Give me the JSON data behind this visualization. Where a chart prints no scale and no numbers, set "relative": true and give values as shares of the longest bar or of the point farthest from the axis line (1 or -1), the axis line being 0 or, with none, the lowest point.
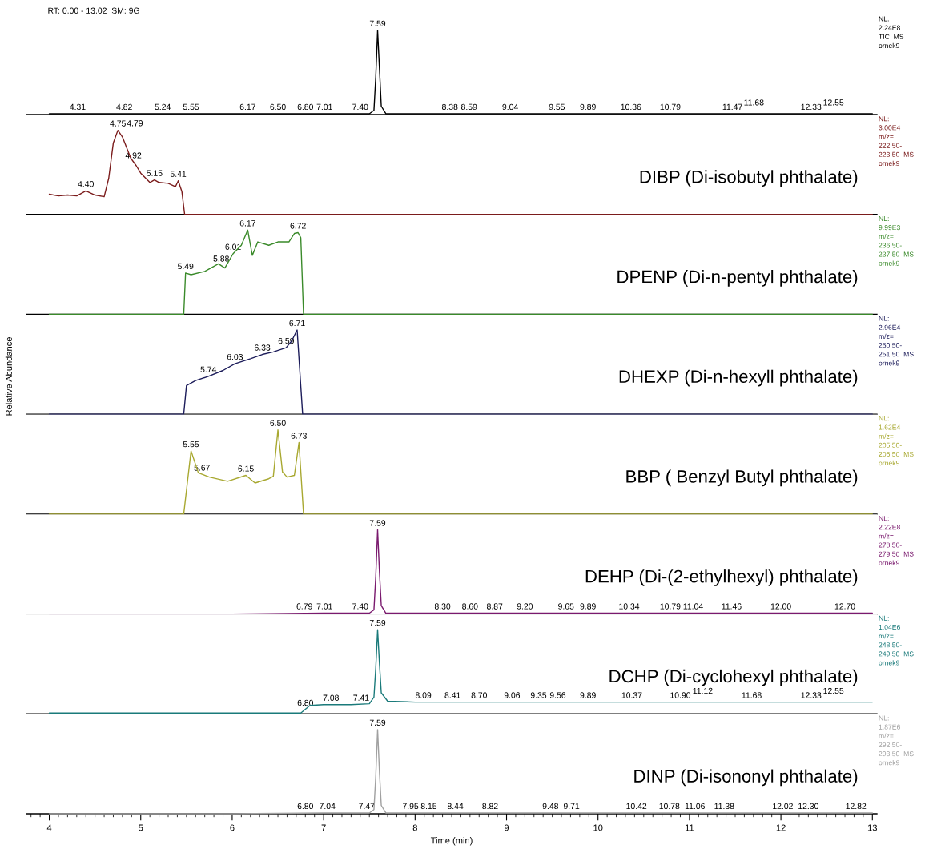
{
  "chart_data": [
    {
      "type": "line",
      "title": "RT: 0.00 - 13.02  SM: 9G",
      "relative": true,
      "tick_labels": false,
      "xlim": [
        3.75,
        13.05
      ],
      "color": "#000000",
      "x": [
        4.0,
        4.3,
        5.0,
        6.0,
        7.0,
        7.5,
        7.55,
        7.57,
        7.59,
        7.61,
        7.63,
        7.68,
        8.0,
        9.0,
        10.0,
        11.0,
        12.0,
        13.0
      ],
      "values": [
        0.01,
        0.01,
        0.01,
        0.01,
        0.01,
        0.01,
        0.05,
        0.45,
        1.0,
        0.55,
        0.1,
        0.01,
        0.01,
        0.01,
        0.01,
        0.01,
        0.01,
        0.01
      ],
      "annotations": [
        {
          "text": "7.59",
          "x": 7.59,
          "y": 1.0
        },
        {
          "text": "4.31",
          "x": 4.31,
          "y": 0.01
        },
        {
          "text": "4.82",
          "x": 4.82,
          "y": 0.01
        },
        {
          "text": "5.24",
          "x": 5.24,
          "y": 0.01
        },
        {
          "text": "5.55",
          "x": 5.55,
          "y": 0.01
        },
        {
          "text": "6.17",
          "x": 6.17,
          "y": 0.01
        },
        {
          "text": "6.50",
          "x": 6.5,
          "y": 0.01
        },
        {
          "text": "6.80",
          "x": 6.8,
          "y": 0.01
        },
        {
          "text": "7.01",
          "x": 7.01,
          "y": 0.01
        },
        {
          "text": "7.40",
          "x": 7.4,
          "y": 0.01
        },
        {
          "text": "8.38",
          "x": 8.38,
          "y": 0.01
        },
        {
          "text": "8.59",
          "x": 8.59,
          "y": 0.01
        },
        {
          "text": "9.04",
          "x": 9.04,
          "y": 0.01
        },
        {
          "text": "9.55",
          "x": 9.55,
          "y": 0.01
        },
        {
          "text": "9.89",
          "x": 9.89,
          "y": 0.01
        },
        {
          "text": "10.36",
          "x": 10.36,
          "y": 0.01
        },
        {
          "text": "10.79",
          "x": 10.79,
          "y": 0.01
        },
        {
          "text": "11.47",
          "x": 11.47,
          "y": 0.01
        },
        {
          "text": "11.68",
          "x": 11.68,
          "y": 0.01
        },
        {
          "text": "12.33",
          "x": 12.33,
          "y": 0.01
        },
        {
          "text": "12.55",
          "x": 12.55,
          "y": 0.01
        },
        "NL:\n2.24E8\nTIC  MS\nornek9"
      ]
    },
    {
      "type": "line",
      "relative": true,
      "tick_labels": false,
      "xlim": [
        3.75,
        13.05
      ],
      "color": "#7b1c1c",
      "x": [
        4.0,
        4.1,
        4.2,
        4.3,
        4.4,
        4.5,
        4.6,
        4.65,
        4.7,
        4.75,
        4.8,
        4.89,
        4.95,
        5.0,
        5.1,
        5.15,
        5.2,
        5.3,
        5.38,
        5.41,
        5.45,
        5.48,
        6.0,
        7.0,
        8.0,
        9.0,
        10.0,
        11.0,
        12.0,
        13.0
      ],
      "values": [
        0.24,
        0.22,
        0.23,
        0.22,
        0.28,
        0.23,
        0.21,
        0.43,
        0.85,
        1.0,
        0.92,
        0.67,
        0.58,
        0.49,
        0.38,
        0.41,
        0.38,
        0.37,
        0.33,
        0.4,
        0.27,
        0,
        0,
        0,
        0,
        0,
        0,
        0,
        0,
        0
      ],
      "annotations": [
        {
          "text": "4.40",
          "x": 4.4,
          "y": 0.28
        },
        {
          "text": "4.75",
          "x": 4.75,
          "y": 1.0
        },
        {
          "text": "4.79",
          "x": 4.79,
          "y": 0.95
        },
        {
          "text": "4.92",
          "x": 4.92,
          "y": 0.62
        },
        {
          "text": "5.15",
          "x": 5.15,
          "y": 0.41
        },
        {
          "text": "5.41",
          "x": 5.41,
          "y": 0.4
        },
        "DIBP (Di-isobutyl phthalate)",
        "NL:\n3.00E4\nm/z=\n222.50-\n223.50  MS\nornek9"
      ]
    },
    {
      "type": "line",
      "relative": true,
      "tick_labels": false,
      "xlim": [
        3.75,
        13.05
      ],
      "color": "#3a8a2a",
      "x": [
        4.0,
        5.0,
        5.47,
        5.49,
        5.55,
        5.7,
        5.85,
        5.92,
        6.01,
        6.1,
        6.17,
        6.22,
        6.28,
        6.4,
        6.5,
        6.62,
        6.68,
        6.72,
        6.75,
        6.78,
        7.0,
        8.0,
        9.0,
        10.0,
        11.0,
        12.0,
        13.0
      ],
      "values": [
        0,
        0,
        0,
        0.49,
        0.47,
        0.51,
        0.6,
        0.55,
        0.72,
        0.82,
        1.0,
        0.7,
        0.86,
        0.82,
        0.86,
        0.86,
        0.96,
        0.97,
        0.91,
        0,
        0,
        0,
        0,
        0,
        0,
        0,
        0
      ],
      "annotations": [
        {
          "text": "5.49",
          "x": 5.49,
          "y": 0.49
        },
        {
          "text": "5.88",
          "x": 5.88,
          "y": 0.58
        },
        {
          "text": "6.01",
          "x": 6.01,
          "y": 0.72
        },
        {
          "text": "6.17",
          "x": 6.17,
          "y": 1.0
        },
        {
          "text": "6.72",
          "x": 6.72,
          "y": 0.97
        },
        "DPENP (Di-n-pentyl phthalate)",
        "NL:\n9.99E3\nm/z=\n236.50-\n237.50  MS\nornek9"
      ]
    },
    {
      "type": "line",
      "relative": true,
      "tick_labels": false,
      "xlim": [
        3.75,
        13.05
      ],
      "color": "#1c1c5a",
      "ylabel": "Relative Abundance",
      "x": [
        4.0,
        5.0,
        5.47,
        5.5,
        5.6,
        5.74,
        5.9,
        6.03,
        6.2,
        6.33,
        6.45,
        6.59,
        6.65,
        6.71,
        6.77,
        7.0,
        8.0,
        9.0,
        10.0,
        11.0,
        12.0,
        13.0
      ],
      "values": [
        0,
        0,
        0,
        0.34,
        0.4,
        0.45,
        0.52,
        0.6,
        0.66,
        0.71,
        0.74,
        0.79,
        0.87,
        1.0,
        0,
        0,
        0,
        0,
        0,
        0,
        0,
        0
      ],
      "annotations": [
        {
          "text": "5.74",
          "x": 5.74,
          "y": 0.45
        },
        {
          "text": "6.03",
          "x": 6.03,
          "y": 0.6
        },
        {
          "text": "6.33",
          "x": 6.33,
          "y": 0.71
        },
        {
          "text": "6.59",
          "x": 6.59,
          "y": 0.79
        },
        {
          "text": "6.71",
          "x": 6.71,
          "y": 1.0
        },
        "DHEXP (Di-n-hexyll phthalate)",
        "NL:\n2.96E4\nm/z=\n250.50-\n251.50  MS\nornek9"
      ]
    },
    {
      "type": "line",
      "relative": true,
      "tick_labels": false,
      "xlim": [
        3.75,
        13.05
      ],
      "color": "#a8a830",
      "x": [
        4.0,
        5.0,
        5.47,
        5.55,
        5.63,
        5.75,
        5.95,
        6.15,
        6.25,
        6.4,
        6.45,
        6.5,
        6.55,
        6.6,
        6.68,
        6.73,
        6.78,
        7.0,
        8.0,
        9.0,
        10.0,
        11.0,
        12.0,
        13.0
      ],
      "values": [
        0,
        0,
        0,
        0.75,
        0.49,
        0.44,
        0.39,
        0.46,
        0.37,
        0.42,
        0.45,
        1.0,
        0.5,
        0.44,
        0.46,
        0.85,
        0,
        0,
        0,
        0,
        0,
        0,
        0,
        0
      ],
      "annotations": [
        {
          "text": "5.55",
          "x": 5.55,
          "y": 0.75
        },
        {
          "text": "5.67",
          "x": 5.67,
          "y": 0.47
        },
        {
          "text": "6.15",
          "x": 6.15,
          "y": 0.46
        },
        {
          "text": "6.50",
          "x": 6.5,
          "y": 1.0
        },
        {
          "text": "6.73",
          "x": 6.73,
          "y": 0.85
        },
        "BBP ( Benzyl Butyl phthalate)",
        "NL:\n1.62E4\nm/z=\n205.50-\n206.50  MS\nornek9"
      ]
    },
    {
      "type": "line",
      "relative": true,
      "tick_labels": false,
      "xlim": [
        3.75,
        13.05
      ],
      "color": "#7a1a6e",
      "x": [
        4.0,
        5.0,
        6.0,
        7.0,
        7.5,
        7.55,
        7.57,
        7.59,
        7.61,
        7.63,
        7.68,
        8.0,
        9.0,
        10.0,
        11.0,
        12.0,
        13.0
      ],
      "values": [
        0.0,
        0.0,
        0.0,
        0.01,
        0.01,
        0.05,
        0.45,
        1.0,
        0.5,
        0.1,
        0.01,
        0.01,
        0.01,
        0.01,
        0.01,
        0.01,
        0.01
      ],
      "annotations": [
        {
          "text": "7.59",
          "x": 7.59,
          "y": 1.0
        },
        {
          "text": "6.79",
          "x": 6.79,
          "y": 0.01
        },
        {
          "text": "7.01",
          "x": 7.01,
          "y": 0.01
        },
        {
          "text": "7.40",
          "x": 7.4,
          "y": 0.01
        },
        {
          "text": "8.30",
          "x": 8.3,
          "y": 0.01
        },
        {
          "text": "8.60",
          "x": 8.6,
          "y": 0.01
        },
        {
          "text": "8.87",
          "x": 8.87,
          "y": 0.01
        },
        {
          "text": "9.20",
          "x": 9.2,
          "y": 0.01
        },
        {
          "text": "9.65",
          "x": 9.65,
          "y": 0.01
        },
        {
          "text": "9.89",
          "x": 9.89,
          "y": 0.01
        },
        {
          "text": "10.34",
          "x": 10.34,
          "y": 0.01
        },
        {
          "text": "10.79",
          "x": 10.79,
          "y": 0.01
        },
        {
          "text": "11.04",
          "x": 11.04,
          "y": 0.01
        },
        {
          "text": "11.46",
          "x": 11.46,
          "y": 0.01
        },
        {
          "text": "12.00",
          "x": 12.0,
          "y": 0.01
        },
        {
          "text": "12.70",
          "x": 12.7,
          "y": 0.01
        },
        "DEHP (Di-(2-ethylhexyl) phthalate)",
        "NL:\n2.22E8\nm/z=\n278.50-\n279.50  MS\nornek9"
      ]
    },
    {
      "type": "line",
      "relative": true,
      "tick_labels": false,
      "xlim": [
        3.75,
        13.05
      ],
      "color": "#1a7a7a",
      "x": [
        4.0,
        5.0,
        6.0,
        6.75,
        6.85,
        7.0,
        7.3,
        7.5,
        7.55,
        7.57,
        7.59,
        7.61,
        7.63,
        7.7,
        8.0,
        9.0,
        10.0,
        11.0,
        12.0,
        13.0
      ],
      "values": [
        0.01,
        0.01,
        0.01,
        0.01,
        0.1,
        0.11,
        0.11,
        0.12,
        0.2,
        0.55,
        1.0,
        0.6,
        0.25,
        0.15,
        0.14,
        0.14,
        0.14,
        0.14,
        0.14,
        0.14
      ],
      "annotations": [
        {
          "text": "7.59",
          "x": 7.59,
          "y": 1.0
        },
        {
          "text": "6.80",
          "x": 6.8,
          "y": 0.05
        },
        {
          "text": "7.08",
          "x": 7.08,
          "y": 0.11
        },
        {
          "text": "7.41",
          "x": 7.41,
          "y": 0.11
        },
        {
          "text": "8.09",
          "x": 8.09,
          "y": 0.14
        },
        {
          "text": "8.41",
          "x": 8.41,
          "y": 0.14
        },
        {
          "text": "8.70",
          "x": 8.7,
          "y": 0.14
        },
        {
          "text": "9.06",
          "x": 9.06,
          "y": 0.14
        },
        {
          "text": "9.35",
          "x": 9.35,
          "y": 0.14
        },
        {
          "text": "9.56",
          "x": 9.56,
          "y": 0.14
        },
        {
          "text": "9.89",
          "x": 9.89,
          "y": 0.14
        },
        {
          "text": "10.37",
          "x": 10.37,
          "y": 0.14
        },
        {
          "text": "10.90",
          "x": 10.9,
          "y": 0.14
        },
        {
          "text": "11.12",
          "x": 11.12,
          "y": 0.14
        },
        {
          "text": "11.68",
          "x": 11.68,
          "y": 0.14
        },
        {
          "text": "12.33",
          "x": 12.33,
          "y": 0.14
        },
        {
          "text": "12.55",
          "x": 12.55,
          "y": 0.14
        },
        "DCHP (Di-cyclohexyl phthalate)",
        "NL:\n1.04E6\nm/z=\n248.50-\n249.50  MS\nornek9"
      ]
    },
    {
      "type": "line",
      "relative": true,
      "tick_labels": "x",
      "xlim": [
        3.75,
        13.05
      ],
      "xticks": [
        4,
        5,
        6,
        7,
        8,
        9,
        10,
        11,
        12,
        13
      ],
      "xlabel": "Time (min)",
      "color": "#a0a0a0",
      "x": [
        4.0,
        5.0,
        6.0,
        7.0,
        7.5,
        7.55,
        7.57,
        7.59,
        7.61,
        7.63,
        7.68,
        8.0,
        9.0,
        10.0,
        11.0,
        12.0,
        13.0
      ],
      "values": [
        0.0,
        0.0,
        0.0,
        0.01,
        0.01,
        0.05,
        0.45,
        1.0,
        0.5,
        0.1,
        0.01,
        0.01,
        0.01,
        0.01,
        0.01,
        0.01,
        0.01
      ],
      "annotations": [
        {
          "text": "7.59",
          "x": 7.59,
          "y": 1.0
        },
        {
          "text": "6.80",
          "x": 6.8,
          "y": 0.01
        },
        {
          "text": "7.04",
          "x": 7.04,
          "y": 0.01
        },
        {
          "text": "7.47",
          "x": 7.47,
          "y": 0.01
        },
        {
          "text": "7.95",
          "x": 7.95,
          "y": 0.01
        },
        {
          "text": "8.15",
          "x": 8.15,
          "y": 0.01
        },
        {
          "text": "8.44",
          "x": 8.44,
          "y": 0.01
        },
        {
          "text": "8.82",
          "x": 8.82,
          "y": 0.01
        },
        {
          "text": "9.48",
          "x": 9.48,
          "y": 0.01
        },
        {
          "text": "9.71",
          "x": 9.71,
          "y": 0.01
        },
        {
          "text": "10.42",
          "x": 10.42,
          "y": 0.01
        },
        {
          "text": "10.78",
          "x": 10.78,
          "y": 0.01
        },
        {
          "text": "11.06",
          "x": 11.06,
          "y": 0.01
        },
        {
          "text": "11.38",
          "x": 11.38,
          "y": 0.01
        },
        {
          "text": "12.02",
          "x": 12.02,
          "y": 0.01
        },
        {
          "text": "12.30",
          "x": 12.3,
          "y": 0.01
        },
        {
          "text": "12.82",
          "x": 12.82,
          "y": 0.01
        },
        "DINP (Di-isononyl phthalate)",
        "NL:\n1.87E6\nm/z=\n292.50-\n293.50  MS\nornek9"
      ]
    }
  ]
}
